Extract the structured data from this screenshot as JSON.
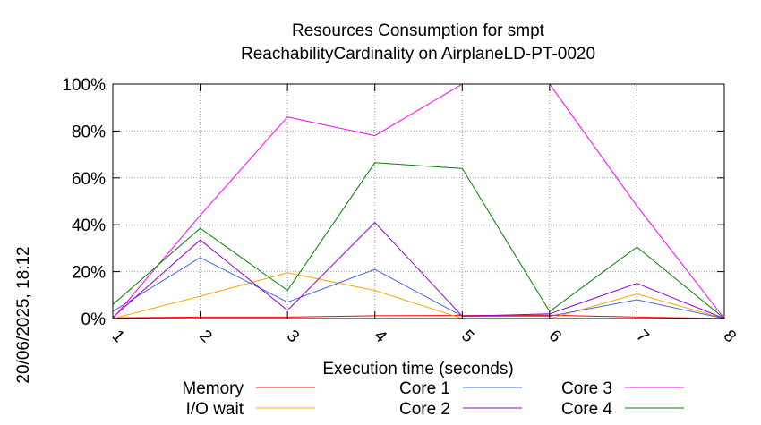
{
  "chart_data": {
    "type": "line",
    "title": [
      "Resources Consumption for smpt",
      "ReachabilityCardinality on AirplaneLD-PT-0020"
    ],
    "xlabel": "Execution time (seconds)",
    "ylabel": "",
    "side_label": "20/06/2025, 18:12",
    "x": [
      1,
      2,
      3,
      4,
      5,
      6,
      7,
      8
    ],
    "x_ticks": [
      "1",
      "2",
      "3",
      "4",
      "5",
      "6",
      "7",
      "8"
    ],
    "xlim": [
      1,
      8
    ],
    "ylim": [
      0,
      100
    ],
    "y_ticks": [
      "0%",
      "20%",
      "40%",
      "60%",
      "80%",
      "100%"
    ],
    "y_tick_values": [
      0,
      20,
      40,
      60,
      80,
      100
    ],
    "grid": true,
    "legend_placement": "bottom",
    "series": [
      {
        "name": "Memory",
        "color": "#ff0000",
        "values": [
          0.3,
          0.6,
          0.6,
          1.2,
          1.3,
          1.4,
          0.6,
          0.0
        ]
      },
      {
        "name": "I/O wait",
        "color": "#ffa500",
        "values": [
          0.0,
          9.5,
          19.5,
          12.0,
          0.0,
          0.0,
          10.5,
          0.0
        ]
      },
      {
        "name": "Core 1",
        "color": "#4169e1",
        "values": [
          3.0,
          26.0,
          7.0,
          21.0,
          1.0,
          1.0,
          8.0,
          0.0
        ]
      },
      {
        "name": "Core 2",
        "color": "#9400d3",
        "values": [
          0.5,
          33.5,
          3.5,
          41.0,
          1.0,
          2.0,
          15.0,
          0.0
        ]
      },
      {
        "name": "Core 3",
        "color": "#ff00ff",
        "values": [
          0.0,
          44.0,
          86.0,
          78.0,
          100.0,
          100.0,
          48.0,
          0.0
        ]
      },
      {
        "name": "Core 4",
        "color": "#008000",
        "values": [
          6.0,
          38.5,
          12.0,
          66.5,
          64.0,
          3.0,
          30.5,
          0.0
        ]
      }
    ]
  }
}
